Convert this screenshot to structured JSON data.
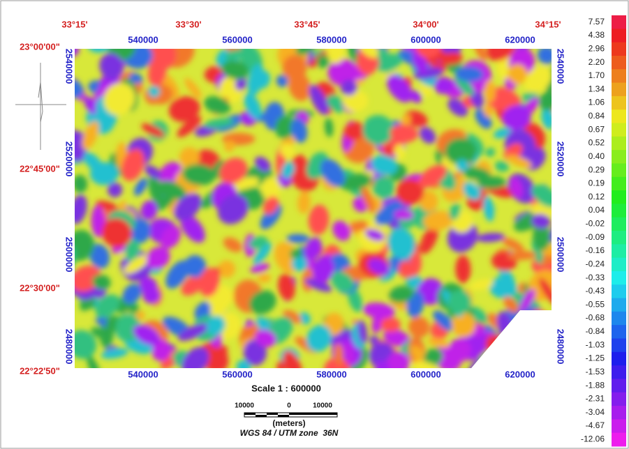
{
  "map": {
    "longitude_labels": [
      "33°15'",
      "33°30'",
      "33°45'",
      "34°00'",
      "34°15'"
    ],
    "latitude_labels": [
      "23°00'00\"",
      "22°45'00\"",
      "22°30'00\"",
      "22°22'50\""
    ],
    "easting_labels_top": [
      "540000",
      "560000",
      "580000",
      "600000",
      "620000"
    ],
    "easting_labels_bottom": [
      "540000",
      "560000",
      "580000",
      "600000",
      "620000"
    ],
    "northing_labels_left": [
      "2540000",
      "2520000",
      "2500000",
      "2480000"
    ],
    "northing_labels_right": [
      "2540000",
      "2520000",
      "2500000",
      "2480000"
    ],
    "legend": {
      "labels": [
        "7.57",
        "4.38",
        "2.96",
        "2.20",
        "1.70",
        "1.34",
        "1.06",
        "0.84",
        "0.67",
        "0.52",
        "0.40",
        "0.29",
        "0.19",
        "0.12",
        "0.04",
        "-0.02",
        "-0.09",
        "-0.16",
        "-0.24",
        "-0.33",
        "-0.43",
        "-0.55",
        "-0.68",
        "-0.84",
        "-1.03",
        "-1.25",
        "-1.53",
        "-1.88",
        "-2.31",
        "-3.04",
        "-4.67",
        "-12.06"
      ]
    },
    "scale": {
      "title": "Scale 1 : 600000",
      "bar_labels": [
        "10000",
        "0",
        "10000"
      ],
      "unit": "(meters)"
    },
    "projection": "WGS 84 / UTM zone  36N"
  }
}
